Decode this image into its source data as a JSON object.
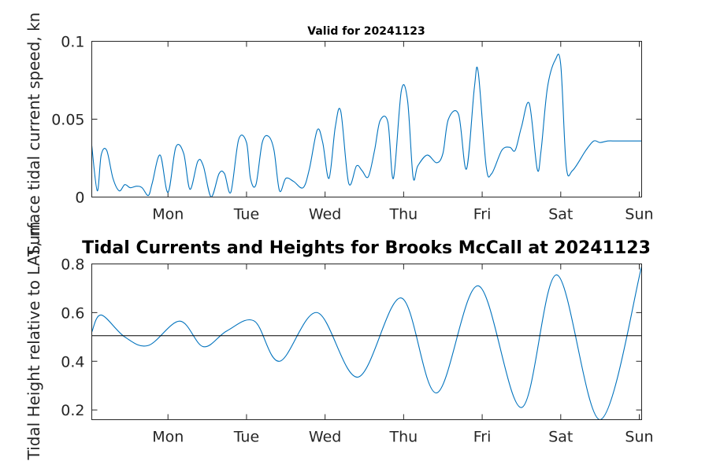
{
  "chart_data": [
    {
      "type": "line",
      "title": "Valid for 20241123",
      "ylabel": "Surface tidal current speed, kn",
      "xlabel": "",
      "x_ticks": [
        "Mon",
        "Tue",
        "Wed",
        "Thu",
        "Fri",
        "Sat",
        "Sun"
      ],
      "x_tick_positions_days": [
        1,
        2,
        3,
        4,
        5,
        6,
        7
      ],
      "xlim_days": [
        0.03,
        7.03
      ],
      "y_ticks": [
        "0",
        "0.05",
        "0.1"
      ],
      "y_tick_values": [
        0,
        0.05,
        0.1
      ],
      "ylim": [
        0,
        0.1
      ],
      "grid": false,
      "series_color": "#0072bd",
      "x_days": [
        0.03,
        0.1,
        0.15,
        0.22,
        0.3,
        0.38,
        0.45,
        0.52,
        0.6,
        0.67,
        0.75,
        0.8,
        0.9,
        1.0,
        1.1,
        1.2,
        1.28,
        1.38,
        1.45,
        1.55,
        1.65,
        1.72,
        1.8,
        1.9,
        2.0,
        2.05,
        2.12,
        2.2,
        2.28,
        2.35,
        2.42,
        2.5,
        2.6,
        2.72,
        2.8,
        2.9,
        2.97,
        3.05,
        3.13,
        3.2,
        3.3,
        3.4,
        3.47,
        3.55,
        3.63,
        3.7,
        3.8,
        3.87,
        3.97,
        4.05,
        4.12,
        4.18,
        4.3,
        4.42,
        4.5,
        4.57,
        4.7,
        4.8,
        4.9,
        4.95,
        5.05,
        5.12,
        5.25,
        5.35,
        5.42,
        5.5,
        5.6,
        5.7,
        5.75,
        5.83,
        5.93,
        6.0,
        6.07,
        6.15,
        6.32,
        6.42,
        6.5,
        6.6,
        6.7,
        6.85,
        6.95,
        7.03
      ],
      "values": [
        0.033,
        0.004,
        0.027,
        0.03,
        0.012,
        0.004,
        0.008,
        0.006,
        0.007,
        0.006,
        0.001,
        0.009,
        0.027,
        0.003,
        0.032,
        0.028,
        0.005,
        0.023,
        0.02,
        0.0,
        0.015,
        0.015,
        0.003,
        0.037,
        0.035,
        0.012,
        0.008,
        0.035,
        0.039,
        0.03,
        0.004,
        0.012,
        0.01,
        0.006,
        0.018,
        0.043,
        0.035,
        0.012,
        0.045,
        0.055,
        0.009,
        0.02,
        0.017,
        0.013,
        0.03,
        0.049,
        0.048,
        0.012,
        0.068,
        0.062,
        0.013,
        0.02,
        0.027,
        0.022,
        0.028,
        0.05,
        0.053,
        0.018,
        0.07,
        0.08,
        0.02,
        0.015,
        0.03,
        0.032,
        0.03,
        0.045,
        0.06,
        0.018,
        0.03,
        0.07,
        0.088,
        0.085,
        0.02,
        0.017,
        0.03,
        0.036,
        0.035,
        0.036,
        0.036,
        0.036,
        0.036,
        0.036
      ]
    },
    {
      "type": "line",
      "title": "Tidal Currents and Heights for Brooks McCall at 20241123",
      "ylabel": "Tidal Height relative to LAT, m",
      "xlabel": "",
      "x_ticks": [
        "Mon",
        "Tue",
        "Wed",
        "Thu",
        "Fri",
        "Sat",
        "Sun"
      ],
      "x_tick_positions_days": [
        1,
        2,
        3,
        4,
        5,
        6,
        7
      ],
      "xlim_days": [
        0.03,
        7.03
      ],
      "y_ticks": [
        "0.2",
        "0.4",
        "0.6",
        "0.8"
      ],
      "y_tick_values": [
        0.2,
        0.4,
        0.6,
        0.8
      ],
      "ylim": [
        0.16,
        0.8
      ],
      "grid": false,
      "reference_line_value": 0.505,
      "series_color": "#0072bd",
      "reference_color": "#000000",
      "x_days": [
        0.03,
        0.15,
        0.45,
        0.75,
        1.15,
        1.45,
        1.75,
        2.1,
        2.42,
        2.9,
        3.42,
        3.97,
        4.42,
        4.95,
        5.5,
        5.95,
        6.5,
        7.03
      ],
      "values": [
        0.52,
        0.59,
        0.5,
        0.465,
        0.565,
        0.46,
        0.525,
        0.565,
        0.4,
        0.6,
        0.335,
        0.66,
        0.27,
        0.71,
        0.21,
        0.755,
        0.16,
        0.79
      ]
    }
  ]
}
